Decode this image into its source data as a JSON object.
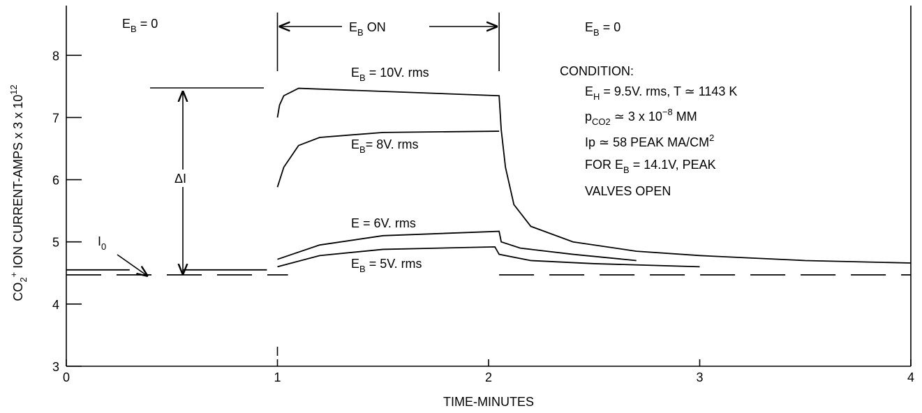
{
  "chart_data": {
    "type": "line",
    "x_label": "TIME-MINUTES",
    "y_label": "CO_{2}^{+} ION CURRENT-AMPS x 3 x 10^{12}",
    "xlim": [
      0,
      4.0
    ],
    "ylim": [
      3,
      8.8
    ],
    "xticks": [
      0,
      1,
      2,
      3,
      4
    ],
    "yticks": [
      3,
      4,
      5,
      6,
      7,
      8
    ],
    "color": "#000000",
    "series": [
      {
        "name": "E_{B} = 10V. rms",
        "x": [
          1,
          1.01,
          1.03,
          1.1,
          1.5,
          2.05,
          2.06,
          2.08,
          2.12,
          2.2,
          2.4,
          2.7,
          3,
          3.5,
          4
        ],
        "values": [
          7.0,
          7.2,
          7.35,
          7.47,
          7.42,
          7.35,
          6.8,
          6.2,
          5.6,
          5.25,
          5.0,
          4.85,
          4.78,
          4.7,
          4.66
        ]
      },
      {
        "name": "E_{B}= 8V. rms",
        "x": [
          1,
          1.03,
          1.1,
          1.2,
          1.5,
          2.05
        ],
        "values": [
          5.88,
          6.2,
          6.55,
          6.68,
          6.76,
          6.78
        ]
      },
      {
        "name": "E = 6V. rms",
        "x": [
          1,
          1.2,
          1.5,
          2.05,
          2.06,
          2.15,
          2.4,
          2.7
        ],
        "values": [
          4.72,
          4.95,
          5.1,
          5.17,
          5.0,
          4.9,
          4.8,
          4.7
        ]
      },
      {
        "name": "E_{B} = 5V. rms",
        "x": [
          1,
          1.2,
          1.5,
          2.03,
          2.05,
          2.2,
          2.5,
          3
        ],
        "values": [
          4.6,
          4.78,
          4.88,
          4.92,
          4.8,
          4.7,
          4.65,
          4.6
        ]
      },
      {
        "x": [
          0,
          0.3,
          null,
          0.55,
          0.95
        ],
        "values": [
          4.55,
          4.55,
          null,
          4.55,
          4.55
        ]
      },
      {
        "dashed": true,
        "x": [
          0,
          1.05,
          null,
          2.05,
          4
        ],
        "values": [
          4.47,
          4.47,
          null,
          4.47,
          4.47
        ]
      }
    ],
    "annotations": [
      "E_{B} = 0",
      "E_{B}  ON",
      "E_{B} = 0",
      "ΔI",
      "I_{0}",
      "CONDITION:",
      "E_{H} = 9.5V. rms,  T ≃ 1143 K",
      "p_{CO2} ≃ 3 x 10^{−8} MM",
      "Ip ≃ 58 PEAK  MA/CM^{2}",
      "FOR E_{B} = 14.1V, PEAK",
      "VALVES OPEN"
    ]
  }
}
